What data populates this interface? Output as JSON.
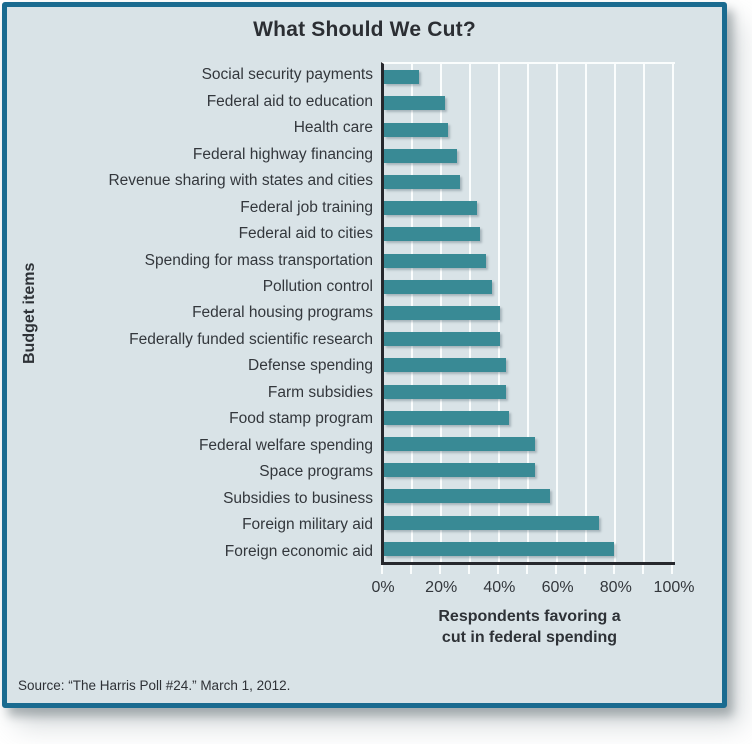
{
  "figure": {
    "title": "What Should We Cut?",
    "source": "Source: “The Harris Poll #24.” March 1, 2012.",
    "colors": {
      "frame_border": "#1a6b90",
      "panel_background": "#d9e3e7",
      "bar": "#398a95",
      "axis": "#26282d",
      "gridline": "#fafdfd"
    }
  },
  "chart_data": {
    "type": "bar",
    "orientation": "horizontal",
    "title": "What Should We Cut?",
    "ylabel": "Budget items",
    "xlabel": "Respondents favoring a\ncut in federal spending",
    "xlim": [
      0,
      100
    ],
    "x_ticks": [
      "0%",
      "20%",
      "40%",
      "60%",
      "80%",
      "100%"
    ],
    "grid": "vertical gridlines every 10%, white",
    "legend": "none",
    "unit": "%",
    "categories": [
      "Social security payments",
      "Federal aid to education",
      "Health care",
      "Federal highway financing",
      "Revenue sharing with states and cities",
      "Federal job training",
      "Federal aid to cities",
      "Spending for mass transportation",
      "Pollution control",
      "Federal housing programs",
      "Federally funded scientific research",
      "Defense spending",
      "Farm subsidies",
      "Food stamp program",
      "Federal welfare spending",
      "Space programs",
      "Subsidies to business",
      "Foreign military aid",
      "Foreign economic aid"
    ],
    "values": [
      12,
      21,
      22,
      25,
      26,
      32,
      33,
      35,
      37,
      40,
      40,
      42,
      42,
      43,
      52,
      52,
      57,
      74,
      79
    ],
    "source": "Source: “The Harris Poll #24.” March 1, 2012."
  }
}
